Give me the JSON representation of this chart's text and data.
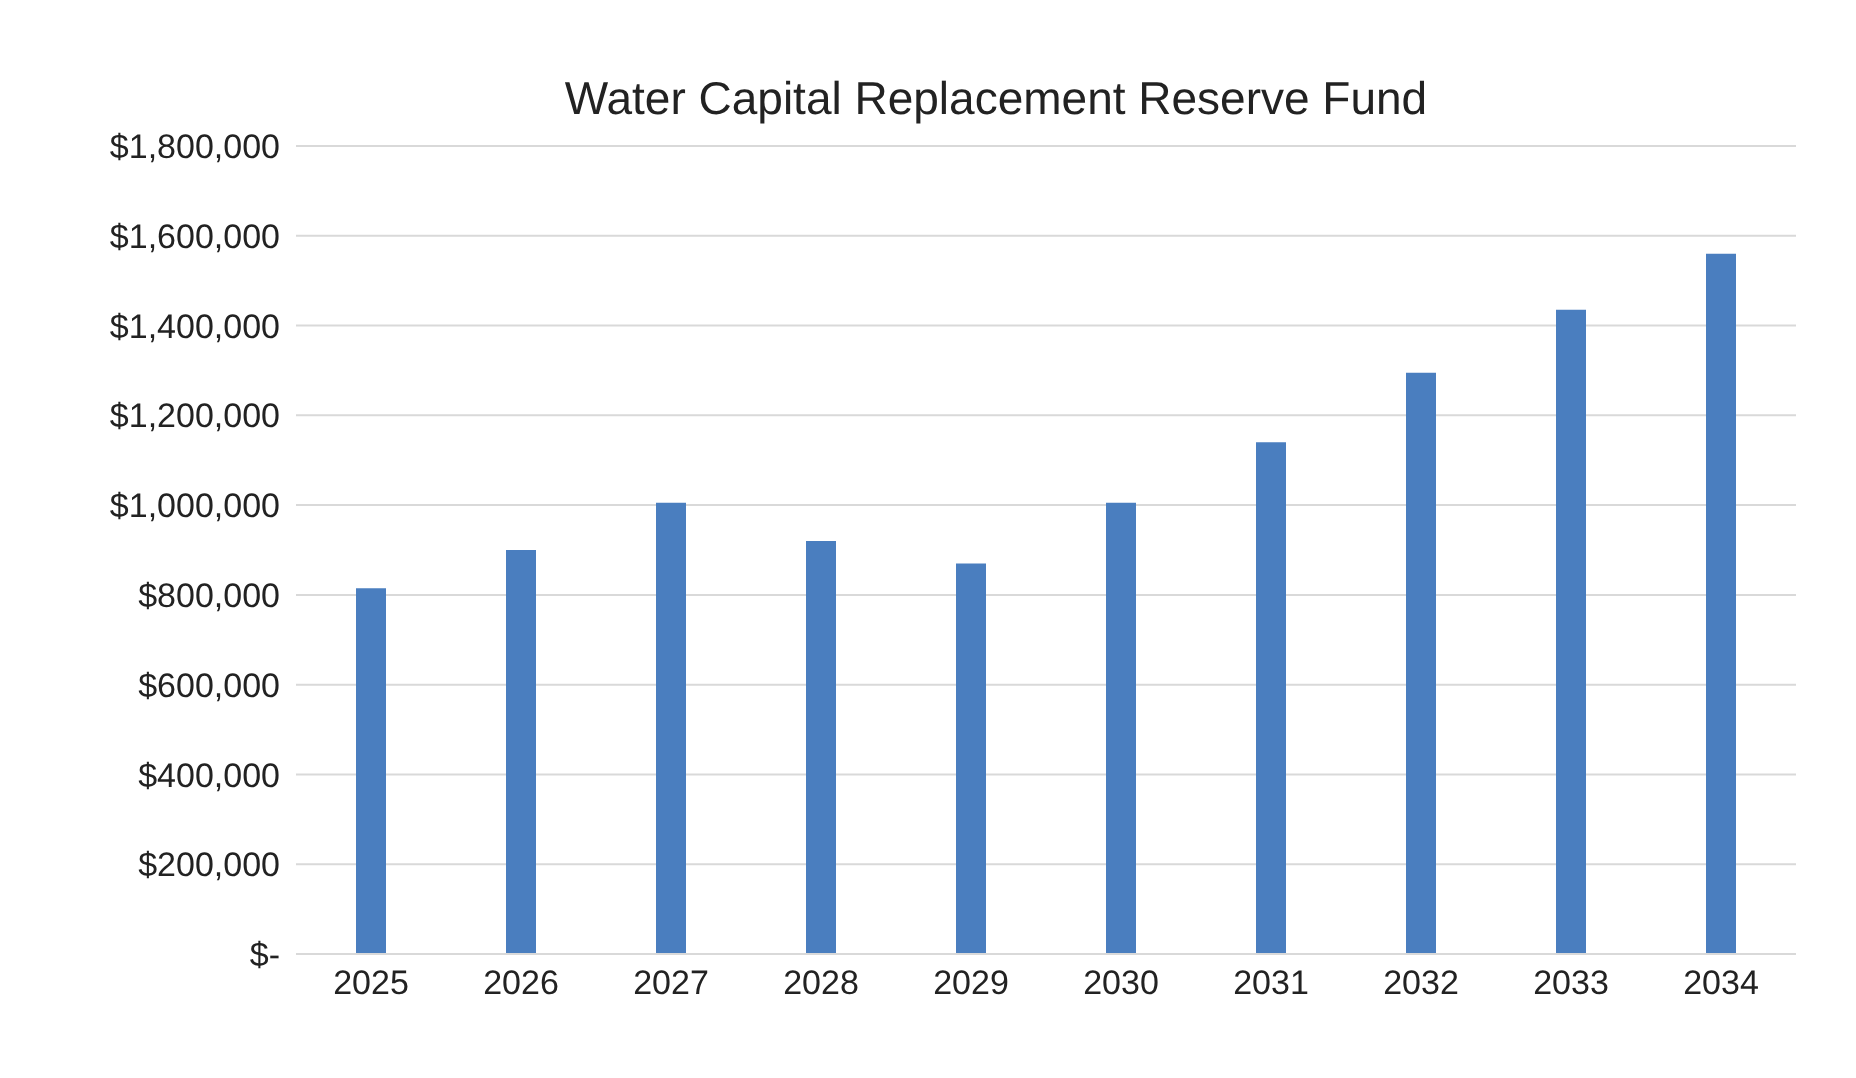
{
  "chart_data": {
    "type": "bar",
    "title": "Water Capital Replacement Reserve Fund",
    "categories": [
      "2025",
      "2026",
      "2027",
      "2028",
      "2029",
      "2030",
      "2031",
      "2032",
      "2033",
      "2034"
    ],
    "values": [
      815000,
      900000,
      1005000,
      920000,
      870000,
      1005000,
      1140000,
      1295000,
      1435000,
      1560000
    ],
    "color": "#4a7ebf",
    "ylim": [
      0,
      1800000
    ],
    "yticks": [
      {
        "value": 0,
        "label": "$-"
      },
      {
        "value": 200000,
        "label": "$200,000"
      },
      {
        "value": 400000,
        "label": "$400,000"
      },
      {
        "value": 600000,
        "label": "$600,000"
      },
      {
        "value": 800000,
        "label": "$800,000"
      },
      {
        "value": 1000000,
        "label": "$1,000,000"
      },
      {
        "value": 1200000,
        "label": "$1,200,000"
      },
      {
        "value": 1400000,
        "label": "$1,400,000"
      },
      {
        "value": 1600000,
        "label": "$1,600,000"
      },
      {
        "value": 1800000,
        "label": "$1,800,000"
      }
    ],
    "grid": "y"
  }
}
